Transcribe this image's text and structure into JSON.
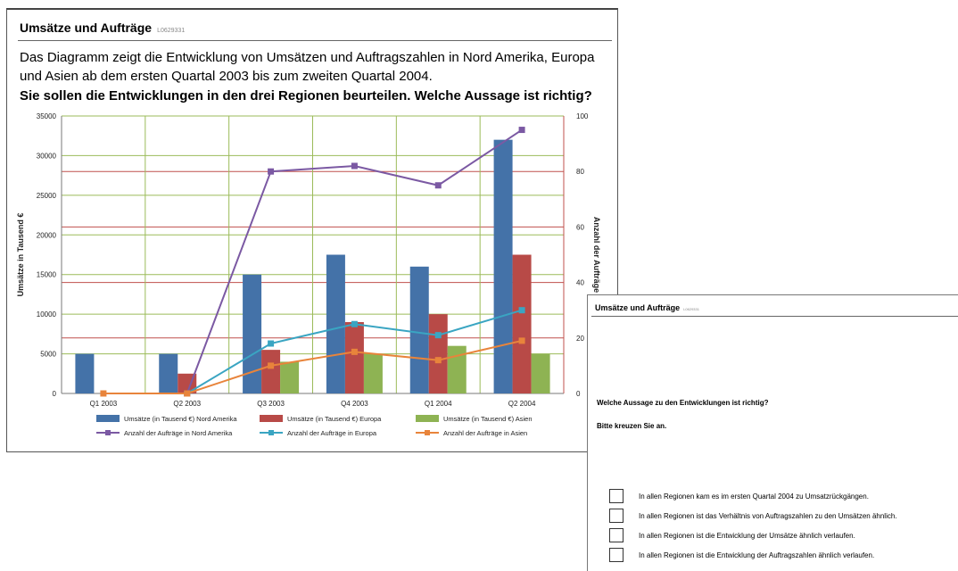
{
  "card1": {
    "title": "Umsätze und Aufträge",
    "code": "L0629331",
    "intro": "Das Diagramm zeigt die Entwicklung von Umsätzen und Auftragszahlen in Nord Amerika, Europa und Asien ab dem ersten Quartal 2003 bis zum zweiten Quartal 2004.",
    "question": "Sie sollen die Entwicklungen in den drei Regionen beurteilen. Welche Aussage ist richtig?"
  },
  "chart_data": {
    "type": "bar",
    "categories": [
      "Q1 2003",
      "Q2 2003",
      "Q3 2003",
      "Q4 2003",
      "Q1 2004",
      "Q2 2004"
    ],
    "ylabel": "Umsätze in Tausend €",
    "y2label": "Anzahl der Aufträge",
    "ylim": [
      0,
      35000
    ],
    "y2lim": [
      0,
      100
    ],
    "yticks": [
      "0",
      "5000",
      "10000",
      "15000",
      "20000",
      "25000",
      "30000",
      "35000"
    ],
    "y2ticks": [
      "0",
      "20",
      "40",
      "60",
      "80",
      "100"
    ],
    "bar_series": [
      {
        "name": "Umsätze (in Tausend €) Nord Amerika",
        "color": "#4472a8",
        "values": [
          5000,
          5000,
          15000,
          17500,
          16000,
          32000
        ]
      },
      {
        "name": "Umsätze (in Tausend €) Europa",
        "color": "#b84a47",
        "values": [
          0,
          2500,
          5500,
          9000,
          10000,
          17500
        ]
      },
      {
        "name": "Umsätze (in Tausend €) Asien",
        "color": "#8eb353",
        "values": [
          0,
          0,
          4000,
          5000,
          6000,
          5000
        ]
      }
    ],
    "line_series": [
      {
        "name": "Anzahl der Aufträge in  Nord Amerika",
        "color": "#7b59a3",
        "values": [
          null,
          0,
          80,
          82,
          75,
          95
        ]
      },
      {
        "name": "Anzahl der Aufträge in Europa",
        "color": "#3aa5c2",
        "values": [
          null,
          0,
          18,
          25,
          21,
          30
        ]
      },
      {
        "name": "Anzahl der Aufträge in Asien",
        "color": "#e8843b",
        "values": [
          0,
          0,
          10,
          15,
          12,
          19
        ]
      }
    ]
  },
  "card2": {
    "title": "Umsätze und Aufträge",
    "code": "L0629331",
    "question": "Welche Aussage zu den Entwicklungen ist richtig?",
    "instruction": "Bitte kreuzen Sie an.",
    "options": [
      "In allen Regionen kam es im ersten Quartal 2004 zu Umsatzrückgängen.",
      "In allen Regionen ist das Verhältnis von Auftragszahlen zu den Umsätzen ähnlich.",
      "In allen Regionen ist die Entwicklung der Umsätze ähnlich verlaufen.",
      "In allen Regionen ist die Entwicklung der Auftragszahlen ähnlich verlaufen."
    ]
  }
}
